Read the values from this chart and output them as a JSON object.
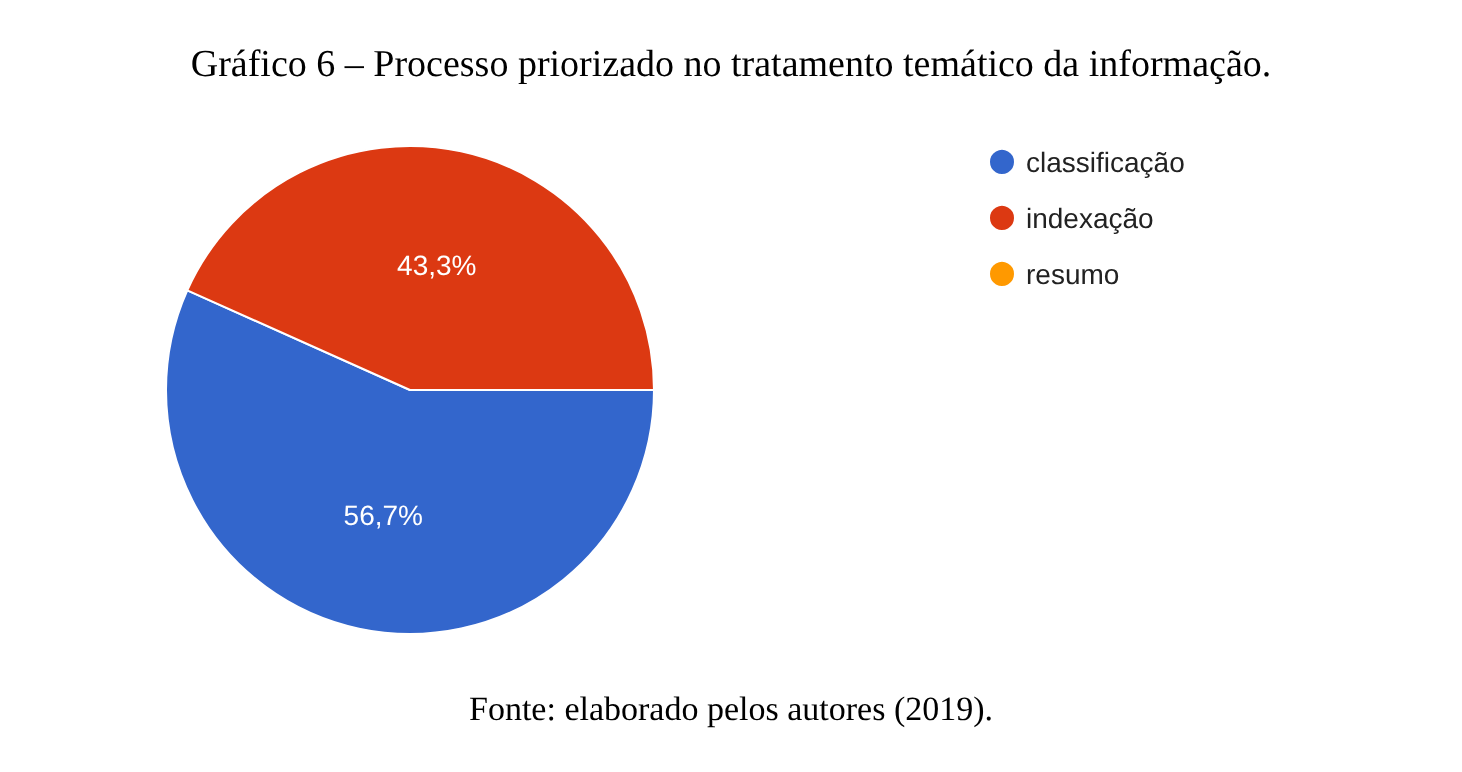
{
  "chart_data": {
    "type": "pie",
    "title": "Gráfico 6 – Processo priorizado no tratamento temático da informação.",
    "categories": [
      "classificação",
      "indexação",
      "resumo"
    ],
    "values": [
      56.7,
      43.3,
      0
    ],
    "colors": [
      "#3366cc",
      "#dc3912",
      "#ff9900"
    ],
    "value_labels": [
      "56,7%",
      "43,3%",
      null
    ],
    "legend": "right",
    "annotations": [
      "Fonte: elaborado pelos autores (2019)."
    ]
  }
}
